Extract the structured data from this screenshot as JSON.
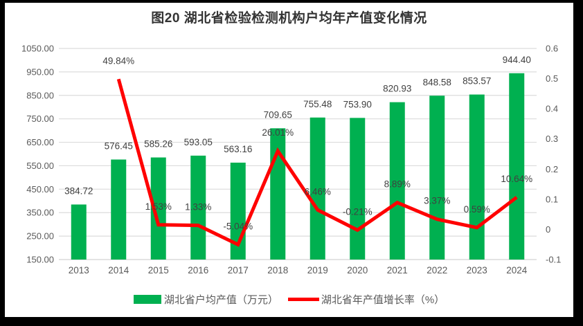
{
  "title": "图20  湖北省检验检测机构户均年产值变化情况",
  "chart_data": {
    "type": "bar",
    "subtype": "combo-bar-line",
    "title": "图20  湖北省检验检测机构户均年产值变化情况",
    "categories": [
      "2013",
      "2014",
      "2015",
      "2016",
      "2017",
      "2018",
      "2019",
      "2020",
      "2021",
      "2022",
      "2023",
      "2024"
    ],
    "series": [
      {
        "name": "湖北省户均产值（万元）",
        "type": "bar",
        "axis": "left",
        "color": "#00B050",
        "values": [
          384.72,
          576.45,
          585.26,
          593.05,
          563.16,
          709.65,
          755.48,
          753.9,
          820.93,
          848.58,
          853.57,
          944.4
        ]
      },
      {
        "name": "湖北省年产值增长率（%）",
        "type": "line",
        "axis": "right",
        "color": "#FF0000",
        "values_percent": [
          null,
          49.84,
          1.53,
          1.33,
          -5.04,
          26.01,
          6.46,
          -0.21,
          8.89,
          3.37,
          0.59,
          10.64
        ]
      }
    ],
    "left_axis": {
      "min": 150,
      "max": 1050,
      "step": 100,
      "tick_labels": [
        "1050.00",
        "950.00",
        "850.00",
        "750.00",
        "650.00",
        "550.00",
        "450.00",
        "350.00",
        "250.00",
        "150.00"
      ]
    },
    "right_axis": {
      "min": -0.1,
      "max": 0.6,
      "step": 0.1,
      "tick_labels": [
        "0.6",
        "0.5",
        "0.4",
        "0.3",
        "0.2",
        "0.1",
        "0",
        "-0.1"
      ]
    },
    "grid": true,
    "legend_position": "bottom"
  },
  "colors": {
    "bar": "#00B050",
    "line": "#FF0000",
    "grid": "#DCDCDC",
    "axis_text": "#595959",
    "label_text": "#404040",
    "title_text": "#333333",
    "frame": "#000000",
    "background": "#FFFFFF"
  }
}
